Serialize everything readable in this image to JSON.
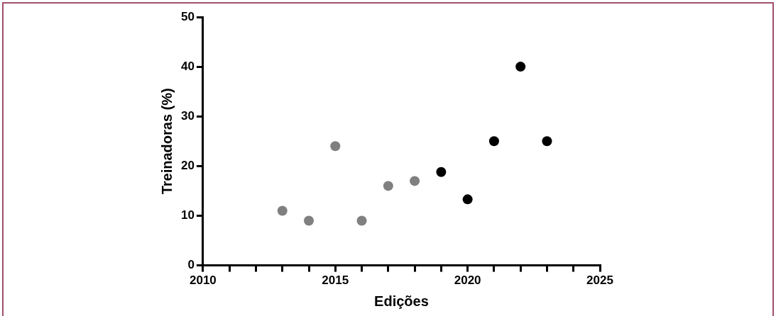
{
  "chart_data": {
    "type": "scatter",
    "xlabel": "Edições",
    "ylabel": "Treinadoras (%)",
    "xlim": [
      2010,
      2025
    ],
    "xticks": [
      2010,
      {
        "value": 2011,
        "label": null
      },
      {
        "value": 2012,
        "label": null
      },
      {
        "value": 2013,
        "label": null
      },
      {
        "value": 2014,
        "label": null
      },
      2015,
      {
        "value": 2016,
        "label": null
      },
      {
        "value": 2017,
        "label": null
      },
      {
        "value": 2018,
        "label": null
      },
      {
        "value": 2019,
        "label": null
      },
      2020,
      {
        "value": 2021,
        "label": null
      },
      {
        "value": 2022,
        "label": null
      },
      {
        "value": 2023,
        "label": null
      },
      {
        "value": 2024,
        "label": null
      },
      2025
    ],
    "ylim": [
      0,
      50
    ],
    "yticks": [
      0,
      10,
      20,
      30,
      40,
      50
    ],
    "grid": false,
    "legend": false,
    "marker": "circle",
    "series": [
      {
        "color": "#808080",
        "x": [
          2013,
          2014,
          2015,
          2016,
          2017,
          2018
        ],
        "values": [
          11,
          9,
          24,
          9,
          16,
          17
        ]
      },
      {
        "color": "#000000",
        "x": [
          2019,
          2020,
          2021,
          2022,
          2023
        ],
        "values": [
          18.8,
          13.3,
          25,
          40,
          25
        ]
      }
    ]
  }
}
